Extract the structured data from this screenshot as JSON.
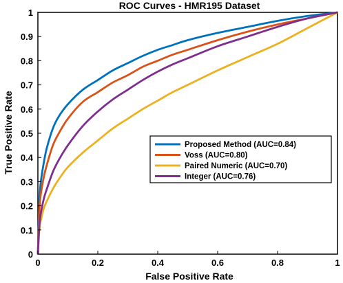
{
  "chart_data": {
    "type": "line",
    "title": "ROC Curves - HMR195 Dataset",
    "xlabel": "False Positive Rate",
    "ylabel": "True Positive Rate",
    "xlim": [
      0,
      1
    ],
    "ylim": [
      0,
      1
    ],
    "xticks": [
      "0",
      "0.2",
      "0.4",
      "0.6",
      "0.8",
      "1"
    ],
    "yticks": [
      "0",
      "0.1",
      "0.2",
      "0.3",
      "0.4",
      "0.5",
      "0.6",
      "0.7",
      "0.8",
      "0.9",
      "1"
    ],
    "grid": false,
    "legend_position": "lower-right",
    "series": [
      {
        "name": "Proposed Method (AUC=0.84)",
        "color": "#0072BD",
        "x": [
          0,
          0.005,
          0.01,
          0.02,
          0.03,
          0.05,
          0.07,
          0.1,
          0.15,
          0.2,
          0.25,
          0.3,
          0.35,
          0.4,
          0.45,
          0.5,
          0.6,
          0.7,
          0.8,
          0.9,
          1.0
        ],
        "y": [
          0,
          0.22,
          0.3,
          0.38,
          0.44,
          0.52,
          0.57,
          0.62,
          0.68,
          0.72,
          0.76,
          0.79,
          0.82,
          0.845,
          0.865,
          0.885,
          0.915,
          0.94,
          0.965,
          0.985,
          1.0
        ]
      },
      {
        "name": "Voss (AUC=0.80)",
        "color": "#D95319",
        "x": [
          0,
          0.005,
          0.01,
          0.02,
          0.03,
          0.05,
          0.07,
          0.1,
          0.15,
          0.2,
          0.25,
          0.3,
          0.35,
          0.4,
          0.45,
          0.5,
          0.6,
          0.7,
          0.8,
          0.9,
          1.0
        ],
        "y": [
          0,
          0.18,
          0.25,
          0.32,
          0.37,
          0.45,
          0.5,
          0.56,
          0.63,
          0.67,
          0.71,
          0.74,
          0.775,
          0.8,
          0.825,
          0.845,
          0.885,
          0.92,
          0.95,
          0.975,
          1.0
        ]
      },
      {
        "name": "Paired Numeric (AUC=0.70)",
        "color": "#EDB120",
        "x": [
          0,
          0.005,
          0.01,
          0.02,
          0.03,
          0.05,
          0.07,
          0.1,
          0.15,
          0.2,
          0.25,
          0.3,
          0.35,
          0.4,
          0.45,
          0.5,
          0.6,
          0.7,
          0.8,
          0.9,
          1.0
        ],
        "y": [
          0,
          0.1,
          0.14,
          0.19,
          0.22,
          0.27,
          0.31,
          0.36,
          0.42,
          0.47,
          0.52,
          0.56,
          0.6,
          0.635,
          0.67,
          0.7,
          0.76,
          0.815,
          0.87,
          0.935,
          1.0
        ]
      },
      {
        "name": "Integer (AUC=0.76)",
        "color": "#7E2F8E",
        "x": [
          0,
          0.005,
          0.01,
          0.02,
          0.03,
          0.05,
          0.07,
          0.1,
          0.15,
          0.2,
          0.25,
          0.3,
          0.35,
          0.4,
          0.45,
          0.5,
          0.6,
          0.7,
          0.8,
          0.9,
          1.0
        ],
        "y": [
          0,
          0.12,
          0.17,
          0.23,
          0.27,
          0.34,
          0.39,
          0.45,
          0.53,
          0.59,
          0.64,
          0.68,
          0.72,
          0.755,
          0.785,
          0.81,
          0.86,
          0.9,
          0.94,
          0.975,
          1.0
        ]
      }
    ]
  }
}
